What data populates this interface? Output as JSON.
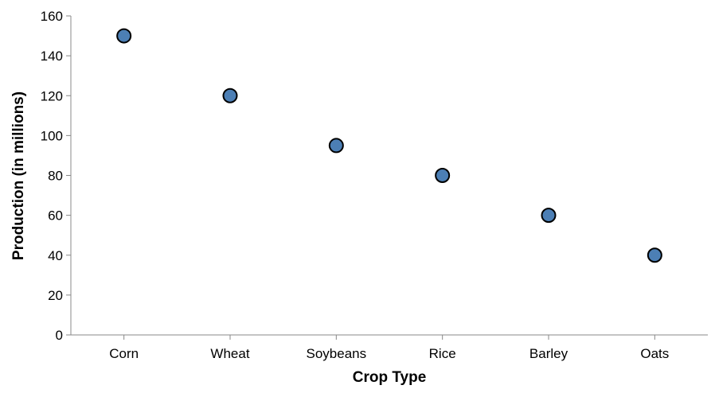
{
  "chart_data": {
    "type": "scatter",
    "title": "",
    "xlabel": "Crop Type",
    "ylabel": "Production (in millions)",
    "categories": [
      "Corn",
      "Wheat",
      "Soybeans",
      "Rice",
      "Barley",
      "Oats"
    ],
    "values": [
      150,
      120,
      95,
      80,
      60,
      40
    ],
    "ylim": [
      0,
      160
    ],
    "yticks": [
      0,
      20,
      40,
      60,
      80,
      100,
      120,
      140,
      160
    ],
    "grid": false,
    "legend": "none",
    "colors": {
      "point_fill": "#4c7fb5",
      "point_stroke": "#000000",
      "axis": "#888888"
    }
  }
}
